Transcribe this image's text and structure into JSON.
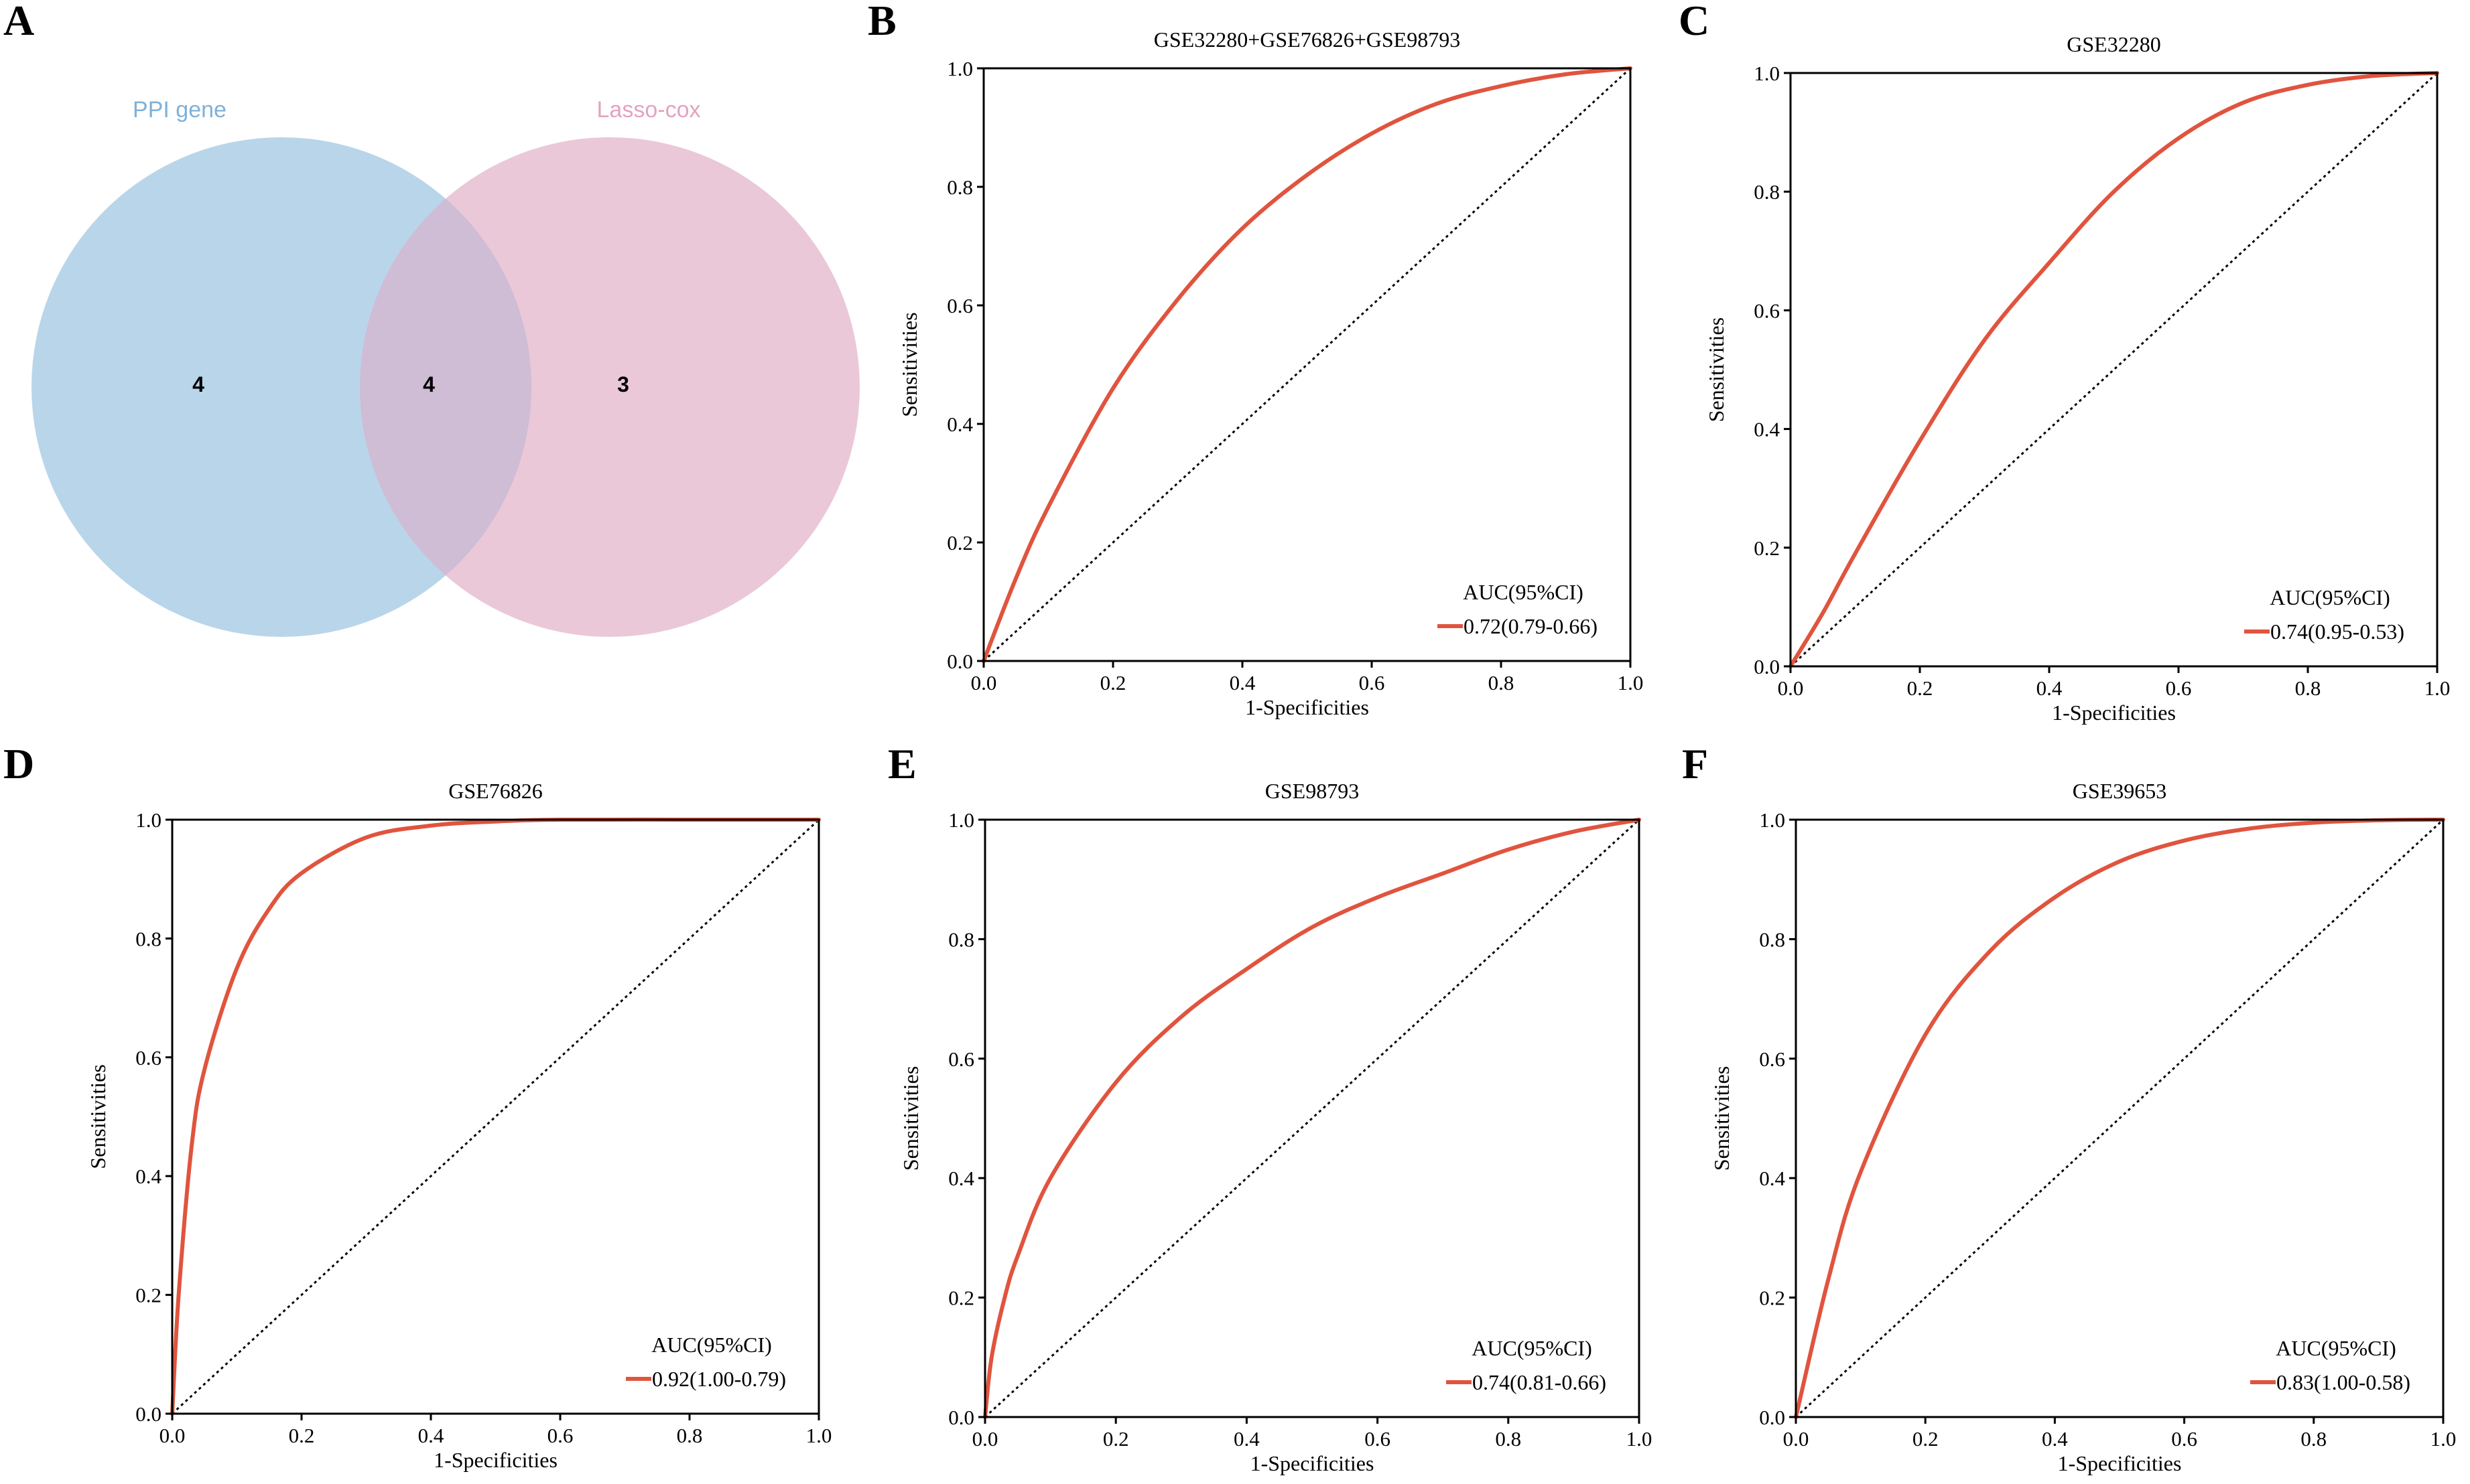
{
  "figure": {
    "panel_letters": [
      "A",
      "B",
      "C",
      "D",
      "E",
      "F"
    ]
  },
  "venn": {
    "sets": [
      {
        "name": "PPI gene",
        "color": "#b9d5ea",
        "label_color": "#7fb1d9",
        "count": "4"
      },
      {
        "name": "Lasso-cox",
        "color": "#eac8d8",
        "label_color": "#e3a3c0",
        "count": "3"
      }
    ],
    "intersection_count": "4",
    "intersection_color": "#cfbcd5"
  },
  "colors": {
    "roc_line": "#e0543e",
    "diagonal": "#000000",
    "axis": "#000000"
  },
  "chart_data": [
    {
      "type": "line",
      "panel": "B",
      "title": "GSE32280+GSE76826+GSE98793",
      "xlabel": "1-Specificities",
      "ylabel": "Sensitivities",
      "xlim": [
        0,
        1
      ],
      "ylim": [
        0,
        1
      ],
      "ticks": [
        "0.0",
        "0.2",
        "0.4",
        "0.6",
        "0.8",
        "1.0"
      ],
      "x": [
        0,
        0.05,
        0.1,
        0.2,
        0.3,
        0.4,
        0.5,
        0.6,
        0.7,
        0.8,
        0.9,
        1.0
      ],
      "y": [
        0,
        0.14,
        0.26,
        0.46,
        0.61,
        0.73,
        0.82,
        0.89,
        0.94,
        0.97,
        0.99,
        1.0
      ],
      "legend_title": "AUC(95%CI)",
      "legend_entry": "0.72(0.79-0.66)"
    },
    {
      "type": "line",
      "panel": "C",
      "title": "GSE32280",
      "xlabel": "1-Specificities",
      "ylabel": "Sensitivities",
      "xlim": [
        0,
        1
      ],
      "ylim": [
        0,
        1
      ],
      "ticks": [
        "0.0",
        "0.2",
        "0.4",
        "0.6",
        "0.8",
        "1.0"
      ],
      "x": [
        0,
        0.05,
        0.1,
        0.2,
        0.3,
        0.4,
        0.5,
        0.6,
        0.7,
        0.8,
        0.9,
        1.0
      ],
      "y": [
        0,
        0.09,
        0.19,
        0.38,
        0.55,
        0.68,
        0.8,
        0.89,
        0.95,
        0.98,
        0.995,
        1.0
      ],
      "legend_title": "AUC(95%CI)",
      "legend_entry": "0.74(0.95-0.53)"
    },
    {
      "type": "line",
      "panel": "D",
      "title": "GSE76826",
      "xlabel": "1-Specificities",
      "ylabel": "Sensitivities",
      "xlim": [
        0,
        1
      ],
      "ylim": [
        0,
        1
      ],
      "ticks": [
        "0.0",
        "0.2",
        "0.4",
        "0.6",
        "0.8",
        "1.0"
      ],
      "x": [
        0,
        0.01,
        0.03,
        0.05,
        0.1,
        0.15,
        0.2,
        0.3,
        0.4,
        0.5,
        0.6,
        0.8,
        1.0
      ],
      "y": [
        0,
        0.2,
        0.45,
        0.58,
        0.75,
        0.85,
        0.91,
        0.97,
        0.99,
        0.997,
        1.0,
        1.0,
        1.0
      ],
      "legend_title": "AUC(95%CI)",
      "legend_entry": "0.92(1.00-0.79)"
    },
    {
      "type": "line",
      "panel": "E",
      "title": "GSE98793",
      "xlabel": "1-Specificities",
      "ylabel": "Sensitivities",
      "xlim": [
        0,
        1
      ],
      "ylim": [
        0,
        1
      ],
      "ticks": [
        "0.0",
        "0.2",
        "0.4",
        "0.6",
        "0.8",
        "1.0"
      ],
      "x": [
        0,
        0.01,
        0.03,
        0.05,
        0.1,
        0.2,
        0.3,
        0.4,
        0.5,
        0.6,
        0.7,
        0.8,
        0.9,
        1.0
      ],
      "y": [
        0,
        0.1,
        0.2,
        0.27,
        0.4,
        0.56,
        0.67,
        0.75,
        0.82,
        0.87,
        0.91,
        0.95,
        0.98,
        1.0
      ],
      "legend_title": "AUC(95%CI)",
      "legend_entry": "0.74(0.81-0.66)"
    },
    {
      "type": "line",
      "panel": "F",
      "title": "GSE39653",
      "xlabel": "1-Specificities",
      "ylabel": "Sensitivities",
      "xlim": [
        0,
        1
      ],
      "ylim": [
        0,
        1
      ],
      "ticks": [
        "0.0",
        "0.2",
        "0.4",
        "0.6",
        "0.8",
        "1.0"
      ],
      "x": [
        0,
        0.05,
        0.1,
        0.2,
        0.3,
        0.4,
        0.5,
        0.6,
        0.7,
        0.8,
        0.9,
        1.0
      ],
      "y": [
        0,
        0.23,
        0.41,
        0.64,
        0.78,
        0.87,
        0.93,
        0.965,
        0.985,
        0.995,
        0.999,
        1.0
      ],
      "legend_title": "AUC(95%CI)",
      "legend_entry": "0.83(1.00-0.58)"
    }
  ]
}
